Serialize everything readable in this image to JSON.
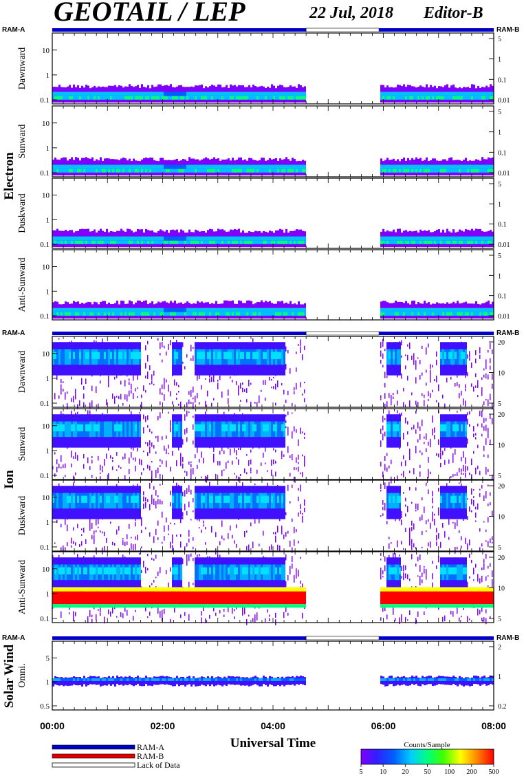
{
  "header": {
    "instrument": "GEOTAIL / LEP",
    "date": "22 Jul, 2018",
    "editor": "Editor-B"
  },
  "ram_labels": {
    "left": "RAM-A",
    "right": "RAM-B"
  },
  "groups": [
    {
      "name": "Electron",
      "panels": [
        "Dawnward",
        "Sunward",
        "Duskward",
        "Anti-Sunward"
      ]
    },
    {
      "name": "Ion",
      "panels": [
        "Dawnward",
        "Sunward",
        "Duskward",
        "Anti-Sunward"
      ]
    },
    {
      "name": "Solar Wind",
      "panels": [
        "Omni."
      ]
    }
  ],
  "colors": {
    "ram_a": "#0000c8",
    "ram_b": "#e00000",
    "lack": "#ffffff",
    "frame": "#000000"
  },
  "chart_data": {
    "type": "heatmap",
    "xlabel": "Universal Time",
    "x_ticks": [
      "00:00",
      "02:00",
      "04:00",
      "06:00",
      "08:00"
    ],
    "x_range_hours": [
      0,
      8
    ],
    "data_gap_hours": [
      4.6,
      5.92
    ],
    "electron_panels": {
      "left_ticks": [
        "0.1",
        "1",
        "10"
      ],
      "right_ticks": [
        "0.01",
        "0.1",
        "1",
        "5"
      ]
    },
    "ion_panels": {
      "left_ticks": [
        "0.1",
        "1",
        "10"
      ],
      "right_ticks": [
        "5",
        "10",
        "20"
      ]
    },
    "solar_wind_panel": {
      "left_ticks": [
        "0.5",
        "1",
        "5"
      ],
      "right_ticks": [
        "0.2",
        "1",
        "2"
      ]
    },
    "legend": [
      {
        "label": "RAM-A",
        "color": "#0000c8"
      },
      {
        "label": "RAM-B",
        "color": "#e00000"
      },
      {
        "label": "Lack of Data",
        "color": "#ffffff"
      }
    ],
    "colorbar": {
      "title": "Counts/Sample",
      "ticks": [
        "5",
        "10",
        "20",
        "50",
        "100",
        "200",
        "500"
      ]
    }
  }
}
